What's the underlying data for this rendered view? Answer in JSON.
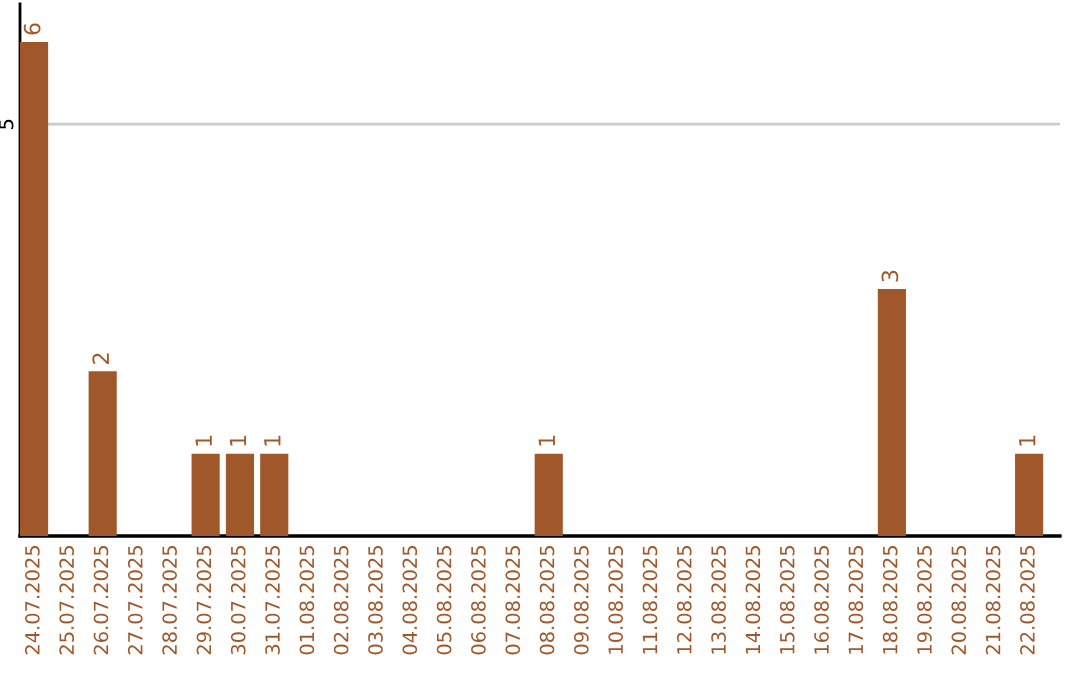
{
  "chart_data": {
    "type": "bar",
    "categories": [
      "24.07.2025",
      "25.07.2025",
      "26.07.2025",
      "27.07.2025",
      "28.07.2025",
      "29.07.2025",
      "30.07.2025",
      "31.07.2025",
      "01.08.2025",
      "02.08.2025",
      "03.08.2025",
      "04.08.2025",
      "05.08.2025",
      "06.08.2025",
      "07.08.2025",
      "08.08.2025",
      "09.08.2025",
      "10.08.2025",
      "11.08.2025",
      "12.08.2025",
      "13.08.2025",
      "14.08.2025",
      "15.08.2025",
      "16.08.2025",
      "17.08.2025",
      "18.08.2025",
      "19.08.2025",
      "20.08.2025",
      "21.08.2025",
      "22.08.2025"
    ],
    "values": [
      6,
      0,
      2,
      0,
      0,
      1,
      1,
      1,
      0,
      0,
      0,
      0,
      0,
      0,
      0,
      1,
      0,
      0,
      0,
      0,
      0,
      0,
      0,
      0,
      0,
      3,
      0,
      0,
      0,
      1
    ],
    "value_labels": [
      "6",
      null,
      "2",
      null,
      null,
      "1",
      "1",
      "1",
      null,
      null,
      null,
      null,
      null,
      null,
      null,
      "1",
      null,
      null,
      null,
      null,
      null,
      null,
      null,
      null,
      null,
      "3",
      null,
      null,
      null,
      "1"
    ],
    "color": "#a0582a",
    "ylim": [
      0,
      6.46
    ],
    "yticks": [
      5
    ],
    "grid": "y",
    "legend": false
  }
}
